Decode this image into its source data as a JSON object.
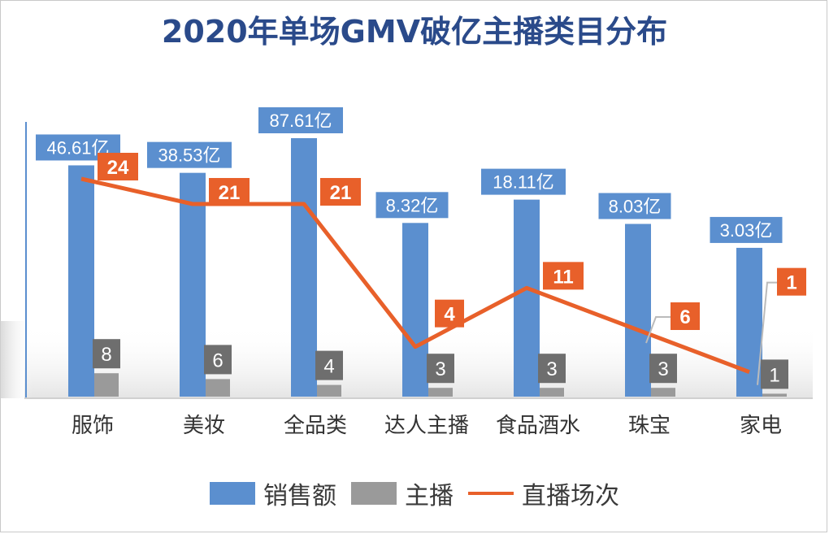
{
  "chart_data": {
    "type": "bar",
    "title": "2020年单场GMV破亿主播类目分布",
    "categories": [
      "服饰",
      "美妆",
      "全品类",
      "达人主播",
      "食品酒水",
      "珠宝",
      "家电"
    ],
    "series": [
      {
        "name": "销售额",
        "kind": "bar",
        "color": "#5b8fcf",
        "values": [
          46.61,
          38.53,
          87.61,
          8.32,
          18.11,
          8.03,
          3.03
        ],
        "labels": [
          "46.61亿",
          "38.53亿",
          "87.61亿",
          "8.32亿",
          "18.11亿",
          "8.03亿",
          "3.03亿"
        ]
      },
      {
        "name": "主播",
        "kind": "bar",
        "color": "#9a9a9a",
        "values": [
          8,
          6,
          4,
          3,
          3,
          3,
          1
        ],
        "labels": [
          "8",
          "6",
          "4",
          "3",
          "3",
          "3",
          "1"
        ]
      },
      {
        "name": "直播场次",
        "kind": "line",
        "color": "#e8602a",
        "values": [
          24,
          21,
          21,
          4,
          11,
          6,
          1
        ],
        "labels": [
          "24",
          "21",
          "21",
          "4",
          "11",
          "6",
          "1"
        ]
      }
    ],
    "legend": "bottom-center",
    "colors": {
      "title": "#2a4a8a",
      "bar_label_bg": "#5b8fcf",
      "count_label_bg": "#6e6e6e",
      "line_label_bg": "#e8602a"
    }
  }
}
